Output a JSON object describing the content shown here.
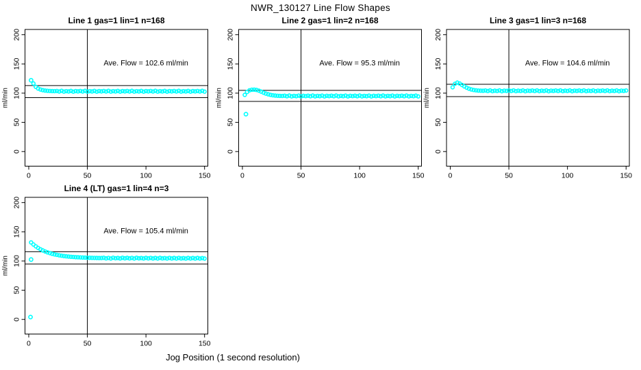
{
  "figure": {
    "title": "NWR_130127  Line Flow Shapes",
    "xlabel": "Jog Position (1 second resolution)",
    "point_color": "#00FFFF",
    "axis_color": "#000000",
    "background": "#FFFFFF"
  },
  "chart_data": [
    {
      "type": "scatter",
      "title": "Line 1 gas=1 lin=1 n=168",
      "ylabel": "ml/min",
      "annotation": "Ave. Flow =  102.6  ml/min",
      "ave_flow": 102.6,
      "ref_lines": [
        112.9,
        92.3
      ],
      "vline_x": 50,
      "xticks": [
        0,
        50,
        100,
        150
      ],
      "yticks": [
        0,
        50,
        100,
        150,
        200
      ],
      "xlim": [
        -3.2,
        152.8
      ],
      "ylim": [
        -25,
        209
      ],
      "annotation_xy": [
        100,
        152
      ],
      "grid": {
        "row": 0,
        "col": 0
      },
      "outliers": [
        [
          2,
          122
        ]
      ],
      "series": {
        "x0": 4,
        "dx": 2,
        "y": [
          116.5,
          110.8,
          107.9,
          106.2,
          105.1,
          104.4,
          104.0,
          103.7,
          103.5,
          103.4,
          103.7,
          102.8,
          103.9,
          102.6,
          103.4,
          102.9,
          103.8,
          102.5,
          103.5,
          103.0,
          103.7,
          102.8,
          103.9,
          102.6,
          103.4,
          102.9,
          103.8,
          102.5,
          103.5,
          103.0,
          103.7,
          102.8,
          103.9,
          102.6,
          103.4,
          102.9,
          103.8,
          102.5,
          103.5,
          103.0,
          103.7,
          102.8,
          103.9,
          102.6,
          103.4,
          102.9,
          103.8,
          102.5,
          103.5,
          103.0,
          103.7,
          102.8,
          103.9,
          102.6,
          103.4,
          102.9,
          103.8,
          102.5,
          103.5,
          103.0,
          103.7,
          102.8,
          103.9,
          102.6,
          103.4,
          102.9,
          103.8,
          102.5,
          103.5,
          103.0,
          103.7,
          102.8,
          103.9,
          102.6
        ]
      }
    },
    {
      "type": "scatter",
      "title": "Line 2 gas=1 lin=2 n=168",
      "ylabel": "ml/min",
      "annotation": "Ave. Flow =  95.3  ml/min",
      "ave_flow": 95.3,
      "ref_lines": [
        104.8,
        85.8
      ],
      "vline_x": 50,
      "xticks": [
        0,
        50,
        100,
        150
      ],
      "yticks": [
        0,
        50,
        100,
        150,
        200
      ],
      "xlim": [
        -3.2,
        152.8
      ],
      "ylim": [
        -25,
        209
      ],
      "annotation_xy": [
        100,
        152
      ],
      "grid": {
        "row": 0,
        "col": 1
      },
      "outliers": [
        [
          3,
          64
        ]
      ],
      "series": {
        "x0": 2,
        "dx": 2,
        "y": [
          97.0,
          102.0,
          104.8,
          105.8,
          106.0,
          105.5,
          104.3,
          102.6,
          100.8,
          99.2,
          98.0,
          97.0,
          96.3,
          95.8,
          95.5,
          95.3,
          95.2,
          95.6,
          94.7,
          95.8,
          94.5,
          95.3,
          94.8,
          95.7,
          94.4,
          95.4,
          94.9,
          95.6,
          94.7,
          95.8,
          94.5,
          95.3,
          94.8,
          95.7,
          94.4,
          95.4,
          94.9,
          95.6,
          94.7,
          95.8,
          94.5,
          95.3,
          94.8,
          95.7,
          94.4,
          95.4,
          94.9,
          95.6,
          94.7,
          95.8,
          94.5,
          95.3,
          94.8,
          95.7,
          94.4,
          95.4,
          94.9,
          95.6,
          94.7,
          95.8,
          94.5,
          95.3,
          94.8,
          95.7,
          94.4,
          95.4,
          94.9,
          95.6,
          94.7,
          95.8,
          94.5,
          95.3,
          94.8,
          95.7,
          94.4
        ]
      }
    },
    {
      "type": "scatter",
      "title": "Line 3 gas=1 lin=3 n=168",
      "ylabel": "ml/min",
      "annotation": "Ave. Flow =  104.6  ml/min",
      "ave_flow": 104.6,
      "ref_lines": [
        115.1,
        94.1
      ],
      "vline_x": 50,
      "xticks": [
        0,
        50,
        100,
        150
      ],
      "yticks": [
        0,
        50,
        100,
        150,
        200
      ],
      "xlim": [
        -3.2,
        152.8
      ],
      "ylim": [
        -25,
        209
      ],
      "annotation_xy": [
        100,
        152
      ],
      "grid": {
        "row": 0,
        "col": 2
      },
      "outliers": [],
      "series": {
        "x0": 2,
        "dx": 2,
        "y": [
          110.0,
          116.0,
          118.0,
          116.5,
          114.0,
          111.5,
          109.3,
          107.6,
          106.3,
          105.4,
          104.8,
          104.4,
          104.2,
          104.1,
          104.5,
          103.6,
          104.7,
          103.4,
          104.2,
          103.7,
          104.6,
          103.3,
          104.3,
          103.8,
          104.5,
          103.6,
          104.7,
          103.4,
          104.2,
          103.7,
          104.6,
          103.3,
          104.3,
          103.8,
          104.5,
          103.6,
          104.7,
          103.4,
          104.2,
          103.7,
          104.6,
          103.3,
          104.3,
          103.8,
          104.5,
          103.6,
          104.7,
          103.4,
          104.2,
          103.7,
          104.6,
          103.3,
          104.3,
          103.8,
          104.5,
          103.6,
          104.7,
          103.4,
          104.2,
          103.7,
          104.6,
          103.3,
          104.3,
          103.8,
          104.5,
          103.6,
          104.7,
          103.4,
          104.2,
          103.7,
          104.6,
          103.3,
          104.3,
          103.8,
          104.5
        ]
      }
    },
    {
      "type": "scatter",
      "title": "Line 4 (LT) gas=1 lin=4 n=3",
      "ylabel": "ml/min",
      "annotation": "Ave. Flow =  105.4  ml/min",
      "ave_flow": 105.4,
      "ref_lines": [
        115.9,
        94.9
      ],
      "vline_x": 50,
      "xticks": [
        0,
        50,
        100,
        150
      ],
      "yticks": [
        0,
        50,
        100,
        150,
        200
      ],
      "xlim": [
        -3.2,
        152.8
      ],
      "ylim": [
        -25,
        209
      ],
      "annotation_xy": [
        100,
        152
      ],
      "grid": {
        "row": 1,
        "col": 0
      },
      "outliers": [
        [
          2,
          102.5
        ],
        [
          1.5,
          4
        ]
      ],
      "series": {
        "x0": 2,
        "dx": 2,
        "y": [
          131.8,
          128.2,
          125.1,
          122.4,
          120.1,
          118.1,
          116.3,
          114.8,
          113.5,
          112.3,
          111.3,
          110.5,
          109.7,
          109.1,
          108.5,
          108.0,
          107.6,
          107.2,
          106.9,
          106.6,
          106.4,
          106.2,
          106.0,
          105.8,
          105.6,
          105.5,
          105.4,
          105.3,
          105.2,
          105.1,
          105.1,
          105.5,
          104.5,
          105.3,
          104.3,
          105.6,
          104.7,
          105.2,
          104.4,
          105.5,
          104.6,
          105.4,
          104.5,
          105.3,
          104.3,
          105.5,
          104.6,
          105.1,
          104.4,
          105.4,
          104.5,
          105.3,
          104.4,
          105.2,
          104.3,
          105.4,
          104.5,
          105.0,
          104.3,
          105.3,
          104.4,
          105.2,
          104.3,
          105.3,
          104.4,
          104.9,
          104.2,
          105.2,
          104.3,
          105.1,
          104.2,
          105.2,
          104.3,
          105.0,
          104.2
        ]
      }
    }
  ]
}
